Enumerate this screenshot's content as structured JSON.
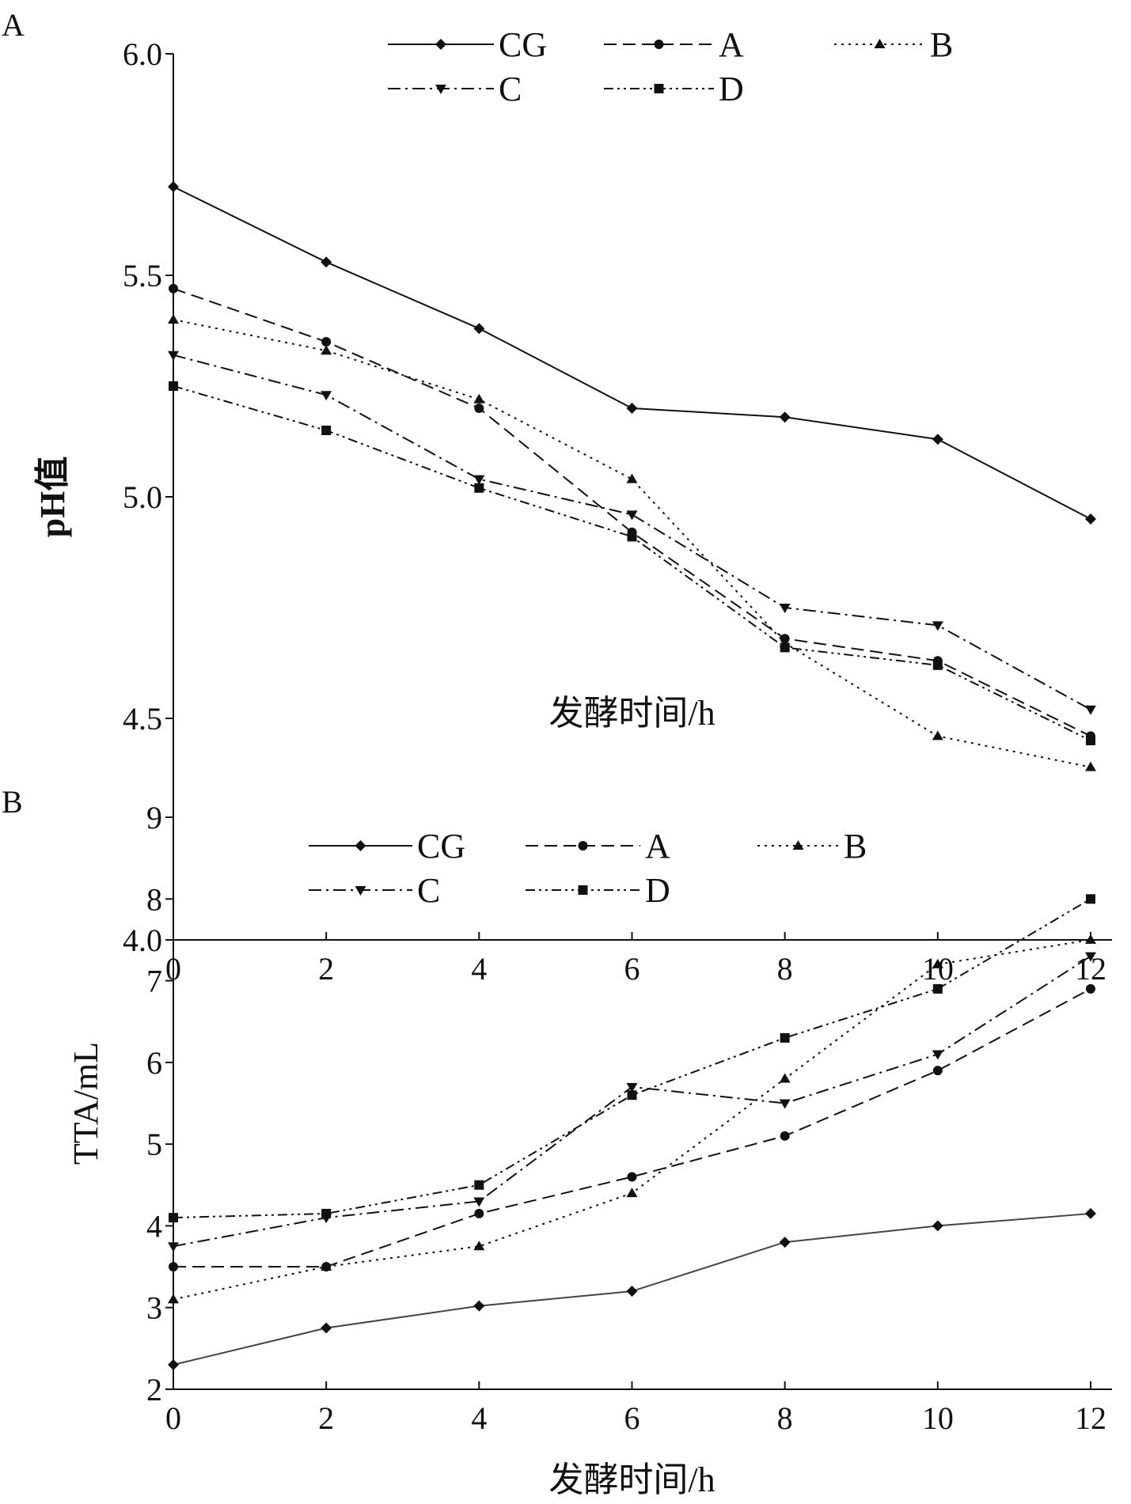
{
  "chart_data": [
    {
      "type": "line",
      "panel_label": "A",
      "xlabel": "发酵时间/h",
      "ylabel": "pH值",
      "x": [
        0,
        2,
        4,
        6,
        8,
        10,
        12
      ],
      "xticks": [
        "0",
        "2",
        "4",
        "6",
        "8",
        "10",
        "12"
      ],
      "yticks": [
        "4.0",
        "4.5",
        "5.0",
        "5.5",
        "6.0"
      ],
      "ytick_values": [
        4.0,
        4.5,
        5.0,
        5.5,
        6.0
      ],
      "xlim": [
        0,
        12
      ],
      "ylim": [
        4.0,
        6.0
      ],
      "grid": false,
      "legend_placement": "top",
      "series": [
        {
          "name": "CG",
          "marker": "diamond",
          "dash": "solid",
          "values": [
            5.7,
            5.53,
            5.38,
            5.2,
            5.18,
            5.13,
            4.95
          ]
        },
        {
          "name": "A",
          "marker": "circle",
          "dash": "dashed",
          "values": [
            5.47,
            5.35,
            5.2,
            4.92,
            4.68,
            4.63,
            4.46
          ]
        },
        {
          "name": "B",
          "marker": "triangle-up",
          "dash": "dotted",
          "values": [
            5.4,
            5.33,
            5.22,
            5.04,
            4.67,
            4.46,
            4.39
          ]
        },
        {
          "name": "C",
          "marker": "triangle-down",
          "dash": "dash-dot",
          "values": [
            5.32,
            5.23,
            5.04,
            4.96,
            4.75,
            4.71,
            4.52
          ]
        },
        {
          "name": "D",
          "marker": "square",
          "dash": "dash-dot-dot",
          "values": [
            5.25,
            5.15,
            5.02,
            4.91,
            4.66,
            4.62,
            4.45
          ]
        }
      ]
    },
    {
      "type": "line",
      "panel_label": "B",
      "xlabel": "发酵时间/h",
      "ylabel": "TTA/mL",
      "x": [
        0,
        2,
        4,
        6,
        8,
        10,
        12
      ],
      "xticks": [
        "0",
        "2",
        "4",
        "6",
        "8",
        "10",
        "12"
      ],
      "yticks": [
        "2",
        "3",
        "4",
        "5",
        "6",
        "7",
        "8",
        "9"
      ],
      "ytick_values": [
        2,
        3,
        4,
        5,
        6,
        7,
        8,
        9
      ],
      "xlim": [
        0,
        12
      ],
      "ylim": [
        2,
        9
      ],
      "grid": false,
      "legend_placement": "top",
      "series": [
        {
          "name": "CG",
          "marker": "diamond",
          "dash": "solid",
          "values": [
            2.3,
            2.75,
            3.02,
            3.2,
            3.8,
            4.0,
            4.15
          ]
        },
        {
          "name": "A",
          "marker": "circle",
          "dash": "dashed",
          "values": [
            3.5,
            3.5,
            4.15,
            4.6,
            5.1,
            5.9,
            6.9
          ]
        },
        {
          "name": "B",
          "marker": "triangle-up",
          "dash": "dotted",
          "values": [
            3.1,
            3.5,
            3.75,
            4.4,
            5.8,
            7.2,
            7.5
          ]
        },
        {
          "name": "C",
          "marker": "triangle-down",
          "dash": "dash-dot",
          "values": [
            3.75,
            4.1,
            4.3,
            5.7,
            5.5,
            6.1,
            7.3
          ]
        },
        {
          "name": "D",
          "marker": "square",
          "dash": "dash-dot-dot",
          "values": [
            4.1,
            4.15,
            4.5,
            5.6,
            6.3,
            6.9,
            8.0
          ]
        }
      ]
    }
  ]
}
